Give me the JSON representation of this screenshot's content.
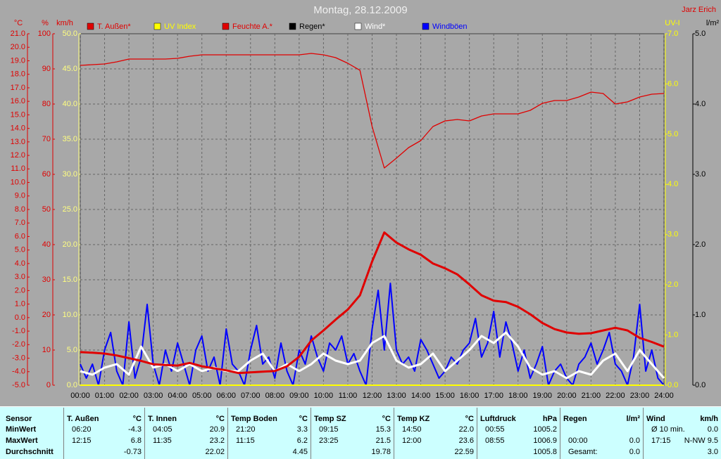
{
  "chart_data": {
    "type": "line",
    "title": "Montag, 28.12.2009",
    "annotation": "Jarz Erich",
    "xlim": [
      0,
      24
    ],
    "xticks": [
      {
        "value": 0,
        "label": "00:00"
      },
      {
        "value": 1,
        "label": "01:00"
      },
      {
        "value": 2,
        "label": "02:00"
      },
      {
        "value": 3,
        "label": "03:00"
      },
      {
        "value": 4,
        "label": "04:00"
      },
      {
        "value": 5,
        "label": "05:00"
      },
      {
        "value": 6,
        "label": "06:00"
      },
      {
        "value": 7,
        "label": "07:00"
      },
      {
        "value": 8,
        "label": "08:00"
      },
      {
        "value": 9,
        "label": "09:00"
      },
      {
        "value": 10,
        "label": "10:00"
      },
      {
        "value": 11,
        "label": "11:00"
      },
      {
        "value": 12,
        "label": "12:00"
      },
      {
        "value": 13,
        "label": "13:00"
      },
      {
        "value": 14,
        "label": "14:00"
      },
      {
        "value": 15,
        "label": "15:00"
      },
      {
        "value": 16,
        "label": "16:00"
      },
      {
        "value": 17,
        "label": "17:00"
      },
      {
        "value": 18,
        "label": "18:00"
      },
      {
        "value": 19,
        "label": "19:00"
      },
      {
        "value": 20,
        "label": "20:00"
      },
      {
        "value": 21,
        "label": "21:00"
      },
      {
        "value": 22,
        "label": "22:00"
      },
      {
        "value": 23,
        "label": "23:00"
      },
      {
        "value": 24,
        "label": "24:00"
      }
    ],
    "grid": true,
    "grid_axis": 2,
    "axes": [
      {
        "label": "°C",
        "color": "#e00000",
        "tick_color": "#e00000",
        "lim": [
          -5,
          21
        ],
        "ticks": [
          {
            "value": 21,
            "label": "21.0"
          },
          {
            "value": 20,
            "label": "20.0"
          },
          {
            "value": 19,
            "label": "19.0"
          },
          {
            "value": 18,
            "label": "18.0"
          },
          {
            "value": 17,
            "label": "17.0"
          },
          {
            "value": 16,
            "label": "16.0"
          },
          {
            "value": 15,
            "label": "15.0"
          },
          {
            "value": 14,
            "label": "14.0"
          },
          {
            "value": 13,
            "label": "13.0"
          },
          {
            "value": 12,
            "label": "12.0"
          },
          {
            "value": 11,
            "label": "11.0"
          },
          {
            "value": 10,
            "label": "10.0"
          },
          {
            "value": 9,
            "label": "9.0"
          },
          {
            "value": 8,
            "label": "8.0"
          },
          {
            "value": 7,
            "label": "7.0"
          },
          {
            "value": 6,
            "label": "6.0"
          },
          {
            "value": 5,
            "label": "5.0"
          },
          {
            "value": 4,
            "label": "4.0"
          },
          {
            "value": 3,
            "label": "3.0"
          },
          {
            "value": 2,
            "label": "2.0"
          },
          {
            "value": 1,
            "label": "1.0"
          },
          {
            "value": 0,
            "label": "0.0"
          },
          {
            "value": -1,
            "label": "-1.0"
          },
          {
            "value": -2,
            "label": "-2.0"
          },
          {
            "value": -3,
            "label": "-3.0"
          },
          {
            "value": -4,
            "label": "-4.0"
          },
          {
            "value": -5,
            "label": "-5.0"
          }
        ]
      },
      {
        "label": "%",
        "color": "#e00000",
        "tick_color": "#e00000",
        "lim": [
          0,
          100
        ],
        "ticks": [
          100,
          90,
          80,
          70,
          60,
          50,
          40,
          30,
          20,
          10,
          0
        ]
      },
      {
        "label": "km/h",
        "color": "#e00000",
        "tick_color": "#ffff80",
        "lim": [
          0,
          50
        ],
        "ticks": [
          {
            "value": 50,
            "label": "50.0"
          },
          {
            "value": 45,
            "label": "45.0"
          },
          {
            "value": 40,
            "label": "40.0"
          },
          {
            "value": 35,
            "label": "35.0"
          },
          {
            "value": 30,
            "label": "30.0"
          },
          {
            "value": 25,
            "label": "25.0"
          },
          {
            "value": 20,
            "label": "20.0"
          },
          {
            "value": 15,
            "label": "15.0"
          },
          {
            "value": 10,
            "label": "10.0"
          },
          {
            "value": 5,
            "label": "5.0"
          },
          {
            "value": 0,
            "label": "0.0"
          }
        ]
      },
      {
        "label": "UV-I",
        "color": "#ffff00",
        "tick_color": "#ffff00",
        "lim": [
          0,
          7
        ],
        "ticks": [
          {
            "value": 7,
            "label": "7.0"
          },
          {
            "value": 6,
            "label": "6.0"
          },
          {
            "value": 5,
            "label": "5.0"
          },
          {
            "value": 4,
            "label": "4.0"
          },
          {
            "value": 3,
            "label": "3.0"
          },
          {
            "value": 2,
            "label": "2.0"
          },
          {
            "value": 1,
            "label": "1.0"
          },
          {
            "value": 0,
            "label": "0.0"
          }
        ]
      },
      {
        "label": "l/m²",
        "color": "#000000",
        "tick_color": "#000000",
        "lim": [
          0,
          5
        ],
        "ticks": [
          {
            "value": 5,
            "label": "5.0"
          },
          {
            "value": 4,
            "label": "4.0"
          },
          {
            "value": 3,
            "label": "3.0"
          },
          {
            "value": 2,
            "label": "2.0"
          },
          {
            "value": 1,
            "label": "1.0"
          },
          {
            "value": 0,
            "label": "0.0"
          }
        ]
      }
    ],
    "series": [
      {
        "name": "T. Außen*",
        "color": "#e00000",
        "axis": 0,
        "width": 3,
        "x": [
          0,
          0.5,
          1,
          1.5,
          2,
          2.5,
          3,
          3.5,
          4,
          4.5,
          5,
          5.5,
          6,
          6.5,
          7,
          7.5,
          8,
          8.5,
          9,
          9.5,
          10,
          10.5,
          11,
          11.5,
          12,
          12.5,
          13,
          13.5,
          14,
          14.5,
          15,
          15.5,
          16,
          16.5,
          17,
          17.5,
          18,
          18.5,
          19,
          19.5,
          20,
          20.5,
          21,
          21.5,
          22,
          22.5,
          23,
          23.5,
          24
        ],
        "values": [
          -2.55,
          -2.6,
          -2.66,
          -2.8,
          -3.0,
          -3.2,
          -3.45,
          -3.5,
          -3.55,
          -3.35,
          -3.6,
          -3.75,
          -3.9,
          -4.1,
          -4.05,
          -4.0,
          -3.95,
          -3.6,
          -2.9,
          -1.7,
          -0.95,
          -0.15,
          0.6,
          1.65,
          4.15,
          6.3,
          5.55,
          5.05,
          4.65,
          4.0,
          3.65,
          3.2,
          2.45,
          1.65,
          1.25,
          1.15,
          0.8,
          0.25,
          -0.4,
          -0.85,
          -1.1,
          -1.2,
          -1.15,
          -0.95,
          -0.75,
          -0.95,
          -1.5,
          -1.8,
          -2.15
        ]
      },
      {
        "name": "UV Index",
        "color": "#ffff00",
        "axis": 3,
        "width": 2,
        "x": [
          0,
          24
        ],
        "values": [
          0,
          0
        ]
      },
      {
        "name": "Feuchte A.*",
        "color": "#e00000",
        "axis": 1,
        "width": 1.3,
        "x": [
          0,
          0.5,
          1,
          1.5,
          2,
          2.5,
          3,
          3.5,
          4,
          4.5,
          5,
          5.5,
          6,
          6.5,
          7,
          7.5,
          8,
          8.5,
          9,
          9.5,
          10,
          10.5,
          11,
          11.5,
          12,
          12.5,
          13,
          13.5,
          14,
          14.5,
          15,
          15.5,
          16,
          16.5,
          17,
          17.5,
          18,
          18.5,
          19,
          19.5,
          20,
          20.5,
          21,
          21.5,
          22,
          22.5,
          23,
          23.5,
          24
        ],
        "values": [
          91.0,
          91.2,
          91.4,
          92.0,
          92.8,
          92.8,
          92.8,
          92.8,
          93.0,
          93.6,
          94.0,
          94.0,
          94.0,
          94.0,
          94.0,
          94.0,
          94.0,
          94.0,
          94.0,
          94.4,
          94.0,
          93.2,
          91.6,
          89.6,
          73.6,
          61.8,
          64.6,
          67.6,
          69.6,
          73.6,
          75.2,
          75.6,
          75.2,
          76.6,
          77.2,
          77.2,
          77.2,
          78.2,
          80.2,
          81.0,
          81.0,
          82.0,
          83.4,
          83.0,
          80.0,
          80.6,
          82.0,
          82.8,
          83.0
        ]
      },
      {
        "name": "Regen*",
        "color": "#000000",
        "axis": 4,
        "width": 1,
        "x": [
          0,
          24
        ],
        "values": [
          0,
          0
        ]
      },
      {
        "name": "Wind*",
        "color": "#ffffff",
        "axis": 2,
        "width": 3,
        "x": [
          0,
          0.5,
          1,
          1.5,
          2,
          2.5,
          3,
          3.5,
          4,
          4.5,
          5,
          5.5,
          6,
          6.5,
          7,
          7.5,
          8,
          8.5,
          9,
          9.5,
          10,
          10.5,
          11,
          11.5,
          12,
          12.5,
          13,
          13.5,
          14,
          14.5,
          15,
          15.5,
          16,
          16.5,
          17,
          17.5,
          18,
          18.5,
          19,
          19.5,
          20,
          20.5,
          21,
          21.5,
          22,
          22.5,
          23,
          23.5,
          24
        ],
        "values": [
          2,
          1.5,
          2.5,
          3,
          1.5,
          5.5,
          2.5,
          3,
          2,
          3,
          2,
          2.5,
          2,
          2,
          3.5,
          4.5,
          2,
          3,
          2,
          3,
          4.5,
          3.5,
          3,
          3.5,
          6,
          7,
          3.5,
          2.5,
          3,
          4.5,
          2,
          3.5,
          5,
          7,
          6,
          7.5,
          5.5,
          2.5,
          1.5,
          2,
          1,
          2,
          1.5,
          3.5,
          4.5,
          2,
          5,
          3,
          1
        ]
      },
      {
        "name": "Windböen",
        "color": "#0000ff",
        "axis": 2,
        "width": 2,
        "x": [
          0,
          0.25,
          0.5,
          0.75,
          1,
          1.25,
          1.5,
          1.75,
          2,
          2.25,
          2.5,
          2.75,
          3,
          3.25,
          3.5,
          3.75,
          4,
          4.25,
          4.5,
          4.75,
          5,
          5.25,
          5.5,
          5.75,
          6,
          6.25,
          6.5,
          6.75,
          7,
          7.25,
          7.5,
          7.75,
          8,
          8.25,
          8.5,
          8.75,
          9,
          9.25,
          9.5,
          9.75,
          10,
          10.25,
          10.5,
          10.75,
          11,
          11.25,
          11.5,
          11.75,
          12,
          12.25,
          12.5,
          12.75,
          13,
          13.25,
          13.5,
          13.75,
          14,
          14.25,
          14.5,
          14.75,
          15,
          15.25,
          15.5,
          15.75,
          16,
          16.25,
          16.5,
          16.75,
          17,
          17.25,
          17.5,
          17.75,
          18,
          18.25,
          18.5,
          18.75,
          19,
          19.25,
          19.5,
          19.75,
          20,
          20.25,
          20.5,
          20.75,
          21,
          21.25,
          21.5,
          21.75,
          22,
          22.25,
          22.5,
          22.75,
          23,
          23.25,
          23.5,
          23.75,
          24
        ],
        "values": [
          3,
          1,
          3,
          0,
          5,
          7.5,
          2,
          0,
          9,
          1,
          4,
          11.5,
          3,
          0,
          5,
          2,
          6,
          3,
          0,
          5,
          7,
          2,
          4,
          0,
          8,
          3,
          2,
          0,
          5,
          8.5,
          3,
          4,
          1,
          6,
          2,
          0,
          5,
          3,
          7,
          4,
          2,
          6,
          5,
          7,
          3,
          4.5,
          2,
          0,
          8,
          13.5,
          5,
          14.5,
          5,
          3,
          4,
          2,
          6.5,
          5,
          3,
          1,
          2,
          4,
          3,
          5,
          6,
          9.5,
          4,
          6,
          10.5,
          4,
          9,
          6,
          2,
          5,
          1,
          3,
          5.5,
          0,
          2,
          3,
          1,
          0,
          3,
          4,
          6,
          3,
          5,
          7.5,
          3,
          2,
          0,
          4,
          11.5,
          2,
          5,
          1,
          0
        ]
      }
    ]
  },
  "table": {
    "sensor": {
      "name": "Sensor",
      "rows": [
        "MinWert",
        "MaxWert",
        "Durchschnitt"
      ]
    },
    "columns": [
      {
        "name": "T. Außen",
        "unit": "°C",
        "rows": [
          {
            "time": "06:20",
            "value": "-4.3"
          },
          {
            "time": "12:15",
            "value": "6.8"
          },
          {
            "value": "-0.73"
          }
        ]
      },
      {
        "name": "T. Innen",
        "unit": "°C",
        "rows": [
          {
            "time": "04:05",
            "value": "20.9"
          },
          {
            "time": "11:35",
            "value": "23.2"
          },
          {
            "value": "22.02"
          }
        ]
      },
      {
        "name": "Temp Boden",
        "unit": "°C",
        "rows": [
          {
            "time": "21:20",
            "value": "3.3"
          },
          {
            "time": "11:15",
            "value": "6.2"
          },
          {
            "value": "4.45"
          }
        ]
      },
      {
        "name": "Temp SZ",
        "unit": "°C",
        "rows": [
          {
            "time": "09:15",
            "value": "15.3"
          },
          {
            "time": "23:25",
            "value": "21.5"
          },
          {
            "value": "19.78"
          }
        ]
      },
      {
        "name": "Temp KZ",
        "unit": "°C",
        "rows": [
          {
            "time": "14:50",
            "value": "22.0"
          },
          {
            "time": "12:00",
            "value": "23.6"
          },
          {
            "value": "22.59"
          }
        ]
      },
      {
        "name": "Luftdruck",
        "unit": "hPa",
        "rows": [
          {
            "time": "00:55",
            "value": "1005.2"
          },
          {
            "time": "08:55",
            "value": "1006.9"
          },
          {
            "value": "1005.8"
          }
        ]
      },
      {
        "name": "Regen",
        "unit": "l/m²",
        "rows": [
          null,
          {
            "time": "00:00",
            "value": "0.0"
          },
          {
            "time": "Gesamt:",
            "value": "0.0"
          }
        ]
      },
      {
        "name": "Wind",
        "unit": "km/h",
        "rows": [
          {
            "time": "Ø 10 min.",
            "value": "0.0"
          },
          {
            "time": "17:15",
            "value": "N-NW 9.5"
          },
          {
            "value": "3.0"
          }
        ]
      }
    ]
  }
}
